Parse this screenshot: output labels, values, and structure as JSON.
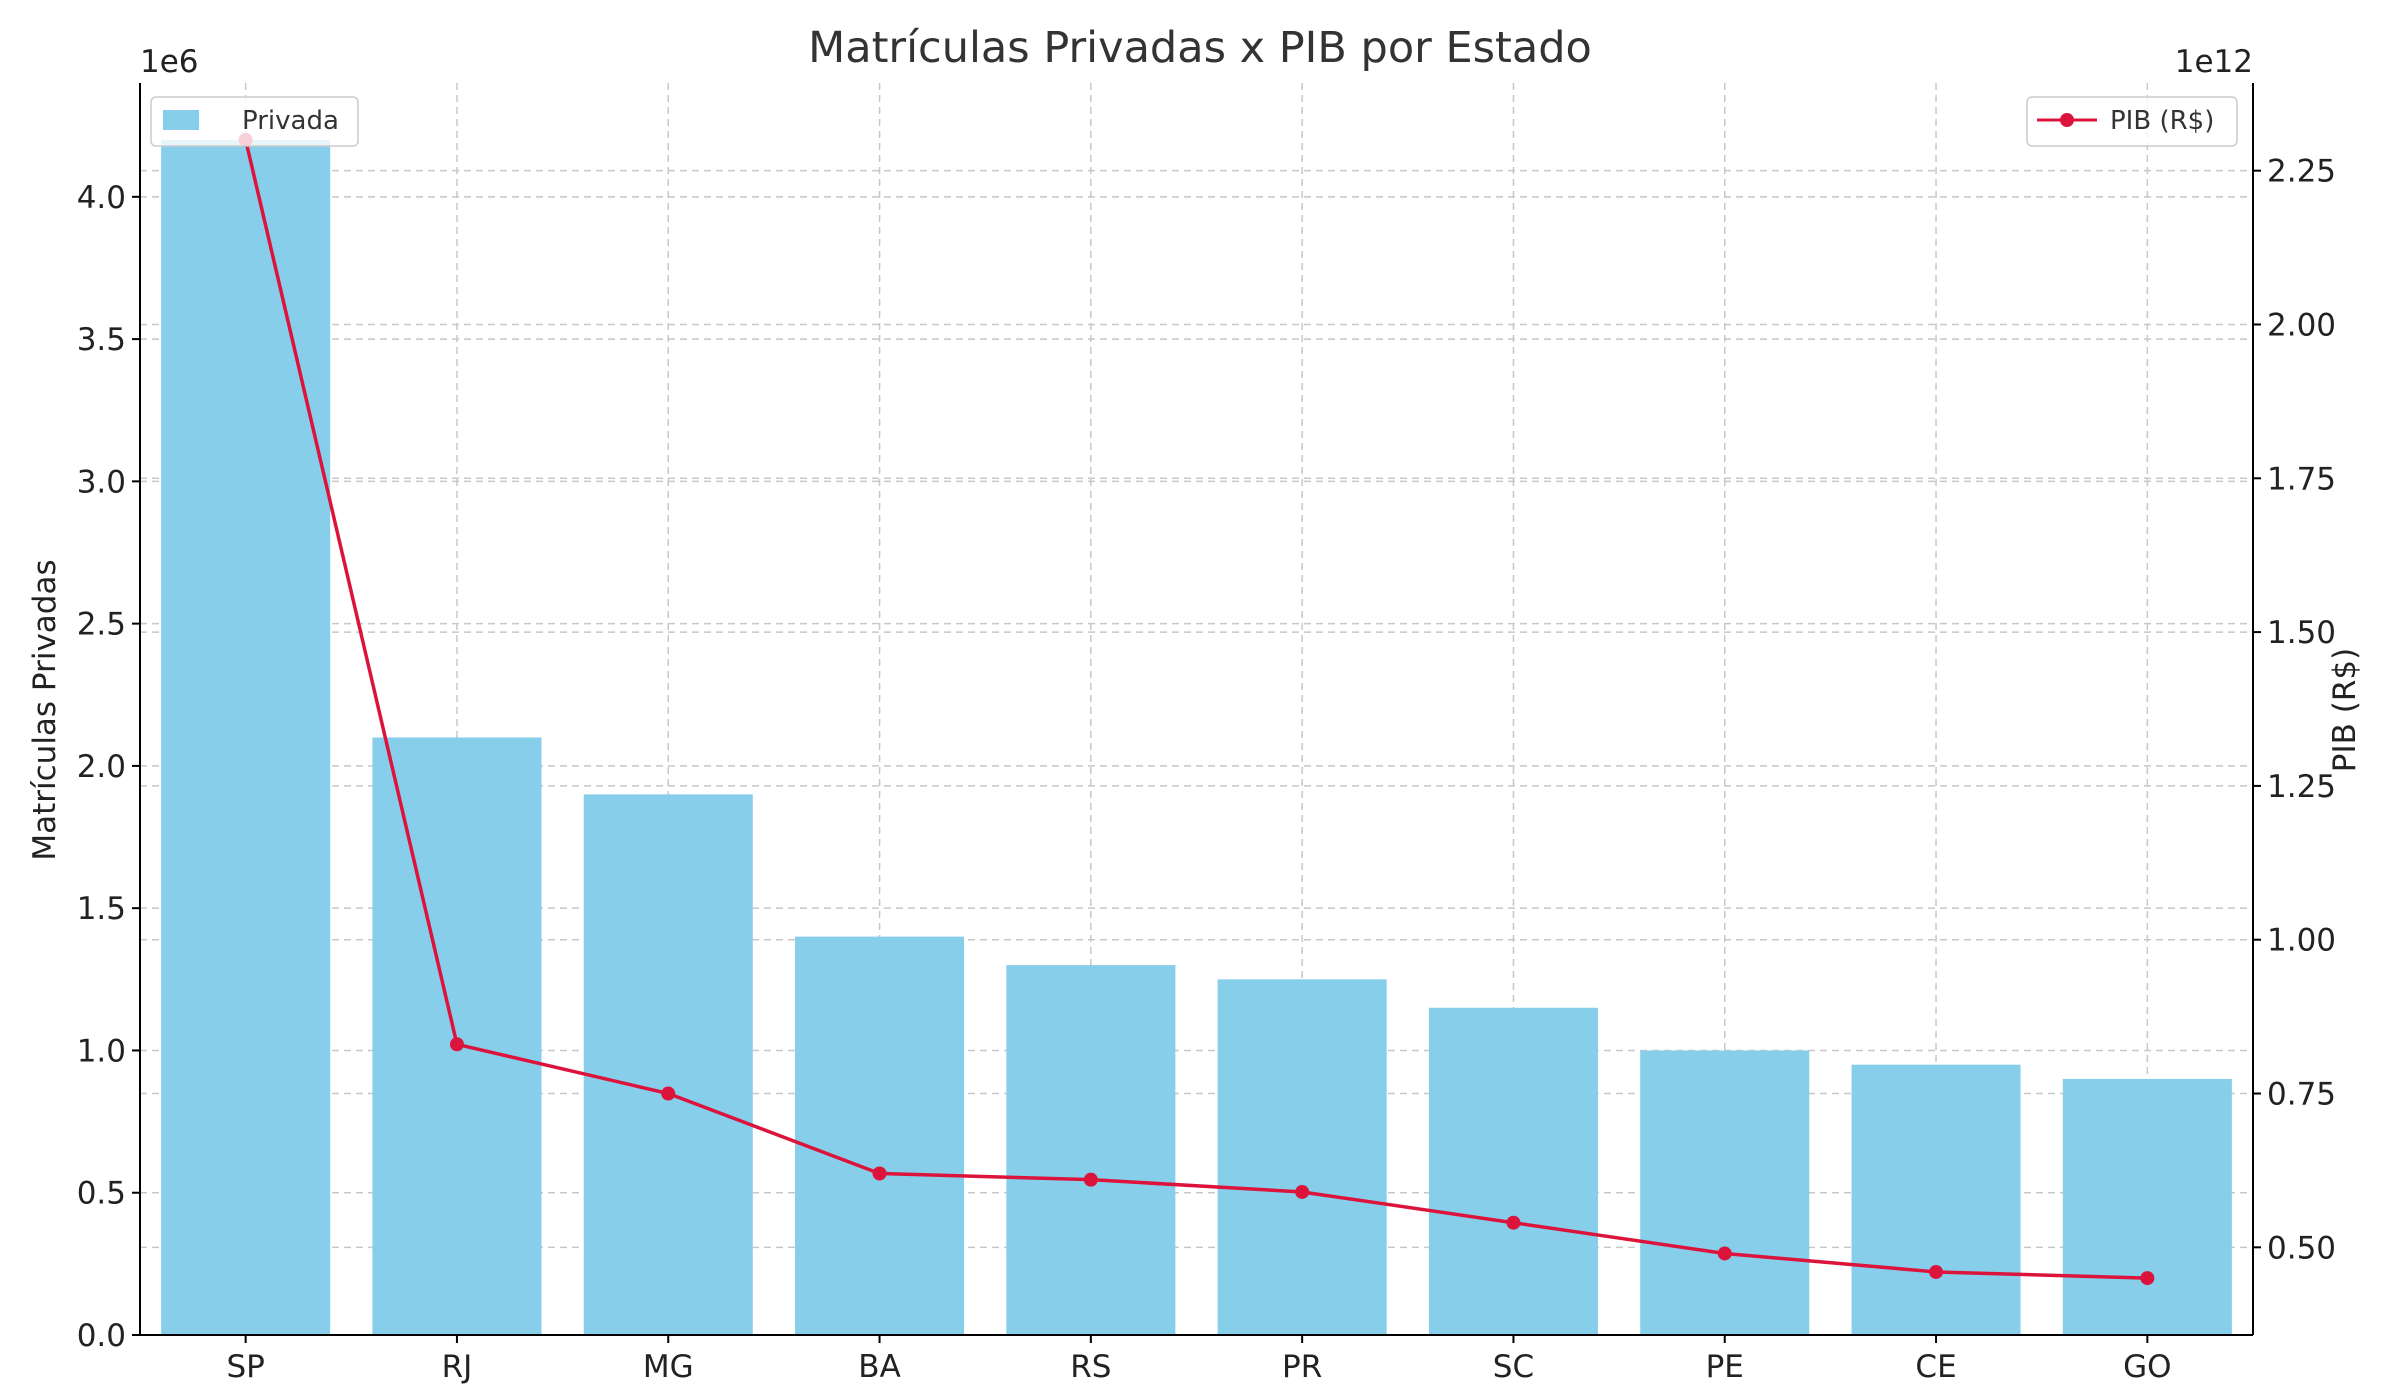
{
  "chart_data": {
    "type": "bar",
    "title": "Matrículas Privadas x PIB por Estado",
    "xlabel": "",
    "ylabel": "Matrículas Privadas",
    "y2label": "PIB (R$)",
    "categories": [
      "SP",
      "RJ",
      "MG",
      "BA",
      "RS",
      "PR",
      "SC",
      "PE",
      "CE",
      "GO"
    ],
    "series": [
      {
        "name": "Privada",
        "type": "bar",
        "axis": "left",
        "color": "#87CEEB",
        "values": [
          4200000,
          2100000,
          1900000,
          1400000,
          1300000,
          1250000,
          1150000,
          1000000,
          950000,
          900000
        ]
      },
      {
        "name": "PIB (R$)",
        "type": "line",
        "axis": "right",
        "color": "#DC143C",
        "marker": "circle",
        "values": [
          2300000000000,
          830000000000,
          750000000000,
          620000000000,
          610000000000,
          590000000000,
          540000000000,
          490000000000,
          460000000000,
          450000000000
        ]
      }
    ],
    "y_axis": {
      "ylim": [
        0,
        4400000
      ],
      "ticks": [
        0,
        500000,
        1000000,
        1500000,
        2000000,
        2500000,
        3000000,
        3500000,
        4000000
      ],
      "tick_labels": [
        "0.0",
        "0.5",
        "1.0",
        "1.5",
        "2.0",
        "2.5",
        "3.0",
        "3.5",
        "4.0"
      ],
      "offset_label": "1e6"
    },
    "y2_axis": {
      "ylim": [
        357500000000,
        2392500000000
      ],
      "ticks": [
        500000000000,
        750000000000,
        1000000000000,
        1250000000000,
        1500000000000,
        1750000000000,
        2000000000000,
        2250000000000
      ],
      "tick_labels": [
        "0.50",
        "0.75",
        "1.00",
        "1.25",
        "1.50",
        "1.75",
        "2.00",
        "2.25"
      ],
      "offset_label": "1e12"
    },
    "grid": true,
    "legend_bar_placement": "upper-left",
    "legend_line_placement": "upper-right"
  }
}
